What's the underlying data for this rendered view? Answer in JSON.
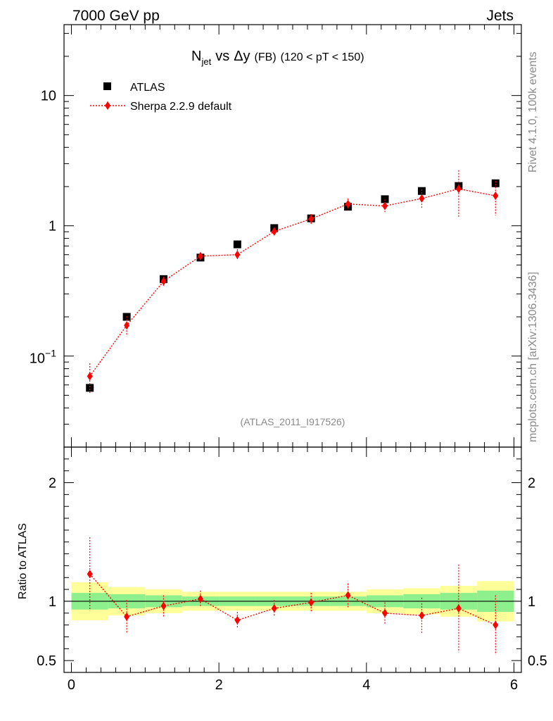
{
  "header": {
    "left": "7000 GeV pp",
    "right": "Jets"
  },
  "side": {
    "top": "Rivet 4.1.0,  100k events",
    "bottom": "mcplots.cern.ch [arXiv:1306.3436]"
  },
  "analysis_tag": "(ATLAS_2011_I917526)",
  "chart_data": [
    {
      "type": "scatter",
      "panel": "main",
      "title": {
        "n": "N",
        "n_sub": "jet",
        "vs": "vs",
        "dy": "Δy",
        "fb": "(FB)",
        "range": "(120 < pT < 150)"
      },
      "yscale": "log",
      "ylim": [
        0.02,
        35
      ],
      "xlim": [
        -0.1,
        6.1
      ],
      "yticks": [
        {
          "v": 0.1,
          "mant": "10",
          "exp": "−1"
        },
        {
          "v": 1,
          "label": "1"
        },
        {
          "v": 10,
          "label": "10"
        }
      ],
      "legend": {
        "position": "top-left",
        "entries": [
          "ATLAS",
          "Sherpa 2.2.9 default"
        ]
      },
      "series": [
        {
          "name": "ATLAS",
          "marker": "square",
          "color": "#000000",
          "x": [
            0.25,
            0.75,
            1.25,
            1.75,
            2.25,
            2.75,
            3.25,
            3.75,
            4.25,
            4.75,
            5.25,
            5.75
          ],
          "y": [
            0.057,
            0.2,
            0.39,
            0.57,
            0.72,
            0.96,
            1.14,
            1.4,
            1.6,
            1.85,
            2.02,
            2.12
          ]
        },
        {
          "name": "Sherpa 2.2.9 default",
          "marker": "diamond",
          "color": "#ff0000",
          "x": [
            0.25,
            0.75,
            1.25,
            1.75,
            2.25,
            2.75,
            3.25,
            3.75,
            4.25,
            4.75,
            5.25,
            5.75
          ],
          "y": [
            0.07,
            0.172,
            0.375,
            0.585,
            0.6,
            0.905,
            1.13,
            1.47,
            1.42,
            1.62,
            1.92,
            1.7
          ],
          "yerr": [
            0.018,
            0.03,
            0.03,
            0.04,
            0.06,
            0.07,
            0.1,
            0.15,
            0.17,
            0.28,
            0.75,
            0.5
          ]
        }
      ]
    },
    {
      "type": "scatter",
      "panel": "ratio",
      "ylabel": "Ratio to ATLAS",
      "ylim": [
        0.4,
        2.3
      ],
      "xlim": [
        -0.1,
        6.1
      ],
      "yticks": [
        {
          "v": 0.5,
          "label": "0.5"
        },
        {
          "v": 1,
          "label": "1"
        },
        {
          "v": 2,
          "label": "2"
        }
      ],
      "xticks": [
        {
          "v": 0,
          "label": "0"
        },
        {
          "v": 2,
          "label": "2"
        },
        {
          "v": 4,
          "label": "4"
        },
        {
          "v": 6,
          "label": "6"
        }
      ],
      "bands": {
        "bin_edges": [
          0,
          0.5,
          1,
          1.5,
          2,
          2.5,
          3,
          3.5,
          4,
          4.5,
          5,
          5.5,
          6
        ],
        "green_half_width": [
          0.07,
          0.06,
          0.05,
          0.04,
          0.04,
          0.04,
          0.04,
          0.04,
          0.05,
          0.06,
          0.07,
          0.09
        ],
        "yellow_half_width": [
          0.16,
          0.12,
          0.1,
          0.08,
          0.08,
          0.08,
          0.08,
          0.08,
          0.1,
          0.11,
          0.13,
          0.17
        ],
        "green_color": "#8df08d",
        "yellow_color": "#ffff99"
      },
      "series": [
        {
          "name": "Sherpa 2.2.9 default / ATLAS",
          "color": "#ff0000",
          "x": [
            0.25,
            0.75,
            1.25,
            1.75,
            2.25,
            2.75,
            3.25,
            3.75,
            4.25,
            4.75,
            5.25,
            5.75
          ],
          "y": [
            1.23,
            0.87,
            0.96,
            1.02,
            0.84,
            0.94,
            0.99,
            1.05,
            0.9,
            0.88,
            0.94,
            0.8
          ],
          "yerr": [
            0.31,
            0.14,
            0.09,
            0.07,
            0.07,
            0.07,
            0.08,
            0.1,
            0.09,
            0.15,
            0.37,
            0.25
          ]
        }
      ]
    }
  ]
}
